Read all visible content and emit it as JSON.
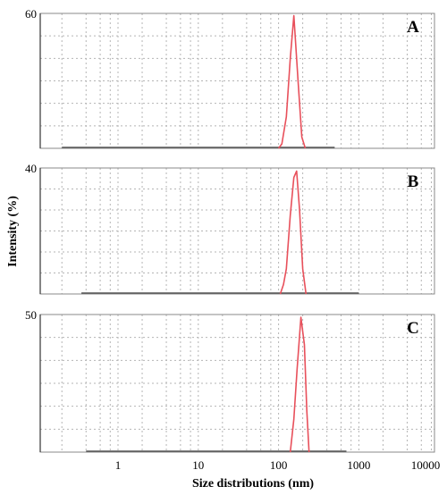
{
  "chart_data": [
    {
      "type": "line",
      "panel_label": "A",
      "color": "#e8505b",
      "x_scale": "log",
      "xlim": [
        0.2,
        1000
      ],
      "ylim": [
        0,
        60
      ],
      "ymax_label": "60",
      "baseline_x": [
        0.2,
        500
      ],
      "x": [
        100,
        110,
        125,
        140,
        155,
        175,
        195,
        215
      ],
      "y": [
        0,
        2,
        14,
        40,
        59,
        30,
        5,
        0
      ]
    },
    {
      "type": "line",
      "panel_label": "B",
      "color": "#e8505b",
      "x_scale": "log",
      "xlim": [
        0.2,
        1000
      ],
      "ylim": [
        0,
        40
      ],
      "ymax_label": "40",
      "baseline_x": [
        0.35,
        1000
      ],
      "x": [
        105,
        115,
        125,
        140,
        155,
        168,
        182,
        200,
        220
      ],
      "y": [
        0,
        3,
        8,
        25,
        37,
        39,
        27,
        8,
        0
      ]
    },
    {
      "type": "line",
      "panel_label": "C",
      "color": "#e8505b",
      "x_scale": "log",
      "xlim": [
        0.2,
        1000
      ],
      "ylim": [
        0,
        50
      ],
      "ymax_label": "50",
      "baseline_x": [
        0.4,
        700
      ],
      "x": [
        140,
        155,
        170,
        190,
        210,
        225,
        240
      ],
      "y": [
        0,
        12,
        30,
        49,
        39,
        15,
        0
      ]
    }
  ],
  "x_axis": {
    "ticks": [
      1,
      10,
      100,
      1000,
      10000
    ],
    "tick_labels": [
      "1",
      "10",
      "100",
      "1000",
      "10000"
    ],
    "label": "Size distributions (nm)"
  },
  "y_axis": {
    "label": "Intensity (%)"
  },
  "grid": true
}
